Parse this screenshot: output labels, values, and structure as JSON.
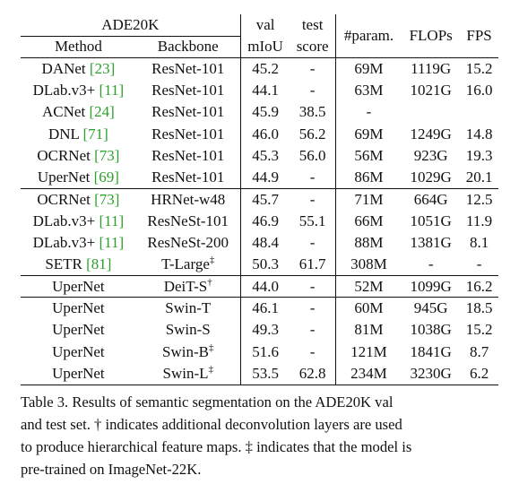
{
  "header": {
    "dataset": "ADE20K",
    "method": "Method",
    "backbone": "Backbone",
    "val_top": "val",
    "val_bottom": "mIoU",
    "test_top": "test",
    "test_bottom": "score",
    "params": "#param.",
    "flops": "FLOPs",
    "fps": "FPS"
  },
  "groups": [
    {
      "rows": [
        {
          "method": "DANet",
          "cite": "[23]",
          "backbone": "ResNet-101",
          "mark": "",
          "val": "45.2",
          "test": "-",
          "params": "69M",
          "flops": "1119G",
          "fps": "15.2"
        },
        {
          "method": "DLab.v3+",
          "cite": "[11]",
          "backbone": "ResNet-101",
          "mark": "",
          "val": "44.1",
          "test": "-",
          "params": "63M",
          "flops": "1021G",
          "fps": "16.0"
        },
        {
          "method": "ACNet",
          "cite": "[24]",
          "backbone": "ResNet-101",
          "mark": "",
          "val": "45.9",
          "test": "38.5",
          "params": "-",
          "flops": "",
          "fps": ""
        },
        {
          "method": "DNL",
          "cite": "[71]",
          "backbone": "ResNet-101",
          "mark": "",
          "val": "46.0",
          "test": "56.2",
          "params": "69M",
          "flops": "1249G",
          "fps": "14.8"
        },
        {
          "method": "OCRNet",
          "cite": "[73]",
          "backbone": "ResNet-101",
          "mark": "",
          "val": "45.3",
          "test": "56.0",
          "params": "56M",
          "flops": "923G",
          "fps": "19.3"
        },
        {
          "method": "UperNet",
          "cite": "[69]",
          "backbone": "ResNet-101",
          "mark": "",
          "val": "44.9",
          "test": "-",
          "params": "86M",
          "flops": "1029G",
          "fps": "20.1"
        }
      ]
    },
    {
      "rows": [
        {
          "method": "OCRNet",
          "cite": "[73]",
          "backbone": "HRNet-w48",
          "mark": "",
          "val": "45.7",
          "test": "-",
          "params": "71M",
          "flops": "664G",
          "fps": "12.5"
        },
        {
          "method": "DLab.v3+",
          "cite": "[11]",
          "backbone": "ResNeSt-101",
          "mark": "",
          "val": "46.9",
          "test": "55.1",
          "params": "66M",
          "flops": "1051G",
          "fps": "11.9"
        },
        {
          "method": "DLab.v3+",
          "cite": "[11]",
          "backbone": "ResNeSt-200",
          "mark": "",
          "val": "48.4",
          "test": "-",
          "params": "88M",
          "flops": "1381G",
          "fps": "8.1"
        },
        {
          "method": "SETR",
          "cite": "[81]",
          "backbone": "T-Large",
          "mark": "‡",
          "val": "50.3",
          "test": "61.7",
          "params": "308M",
          "flops": "-",
          "fps": "-"
        }
      ]
    },
    {
      "rows": [
        {
          "method": "UperNet",
          "cite": "",
          "backbone": "DeiT-S",
          "mark": "†",
          "val": "44.0",
          "test": "-",
          "params": "52M",
          "flops": "1099G",
          "fps": "16.2"
        }
      ]
    },
    {
      "rows": [
        {
          "method": "UperNet",
          "cite": "",
          "backbone": "Swin-T",
          "mark": "",
          "val": "46.1",
          "test": "-",
          "params": "60M",
          "flops": "945G",
          "fps": "18.5"
        },
        {
          "method": "UperNet",
          "cite": "",
          "backbone": "Swin-S",
          "mark": "",
          "val": "49.3",
          "test": "-",
          "params": "81M",
          "flops": "1038G",
          "fps": "15.2"
        },
        {
          "method": "UperNet",
          "cite": "",
          "backbone": "Swin-B",
          "mark": "‡",
          "val": "51.6",
          "test": "-",
          "params": "121M",
          "flops": "1841G",
          "fps": "8.7"
        },
        {
          "method": "UperNet",
          "cite": "",
          "backbone": "Swin-L",
          "mark": "‡",
          "val": "53.5",
          "test": "62.8",
          "params": "234M",
          "flops": "3230G",
          "fps": "6.2",
          "bold_val": true,
          "bold_test": true
        }
      ]
    }
  ],
  "caption": {
    "line1": "Table 3. Results of semantic segmentation on the ADE20K val",
    "line2": "and test set. † indicates additional deconvolution layers are used",
    "line3": "to produce hierarchical feature maps. ‡ indicates that the model is",
    "line4": "pre-trained on ImageNet-22K."
  },
  "colors": {
    "citation": "#2ba02b",
    "text": "#111111"
  }
}
